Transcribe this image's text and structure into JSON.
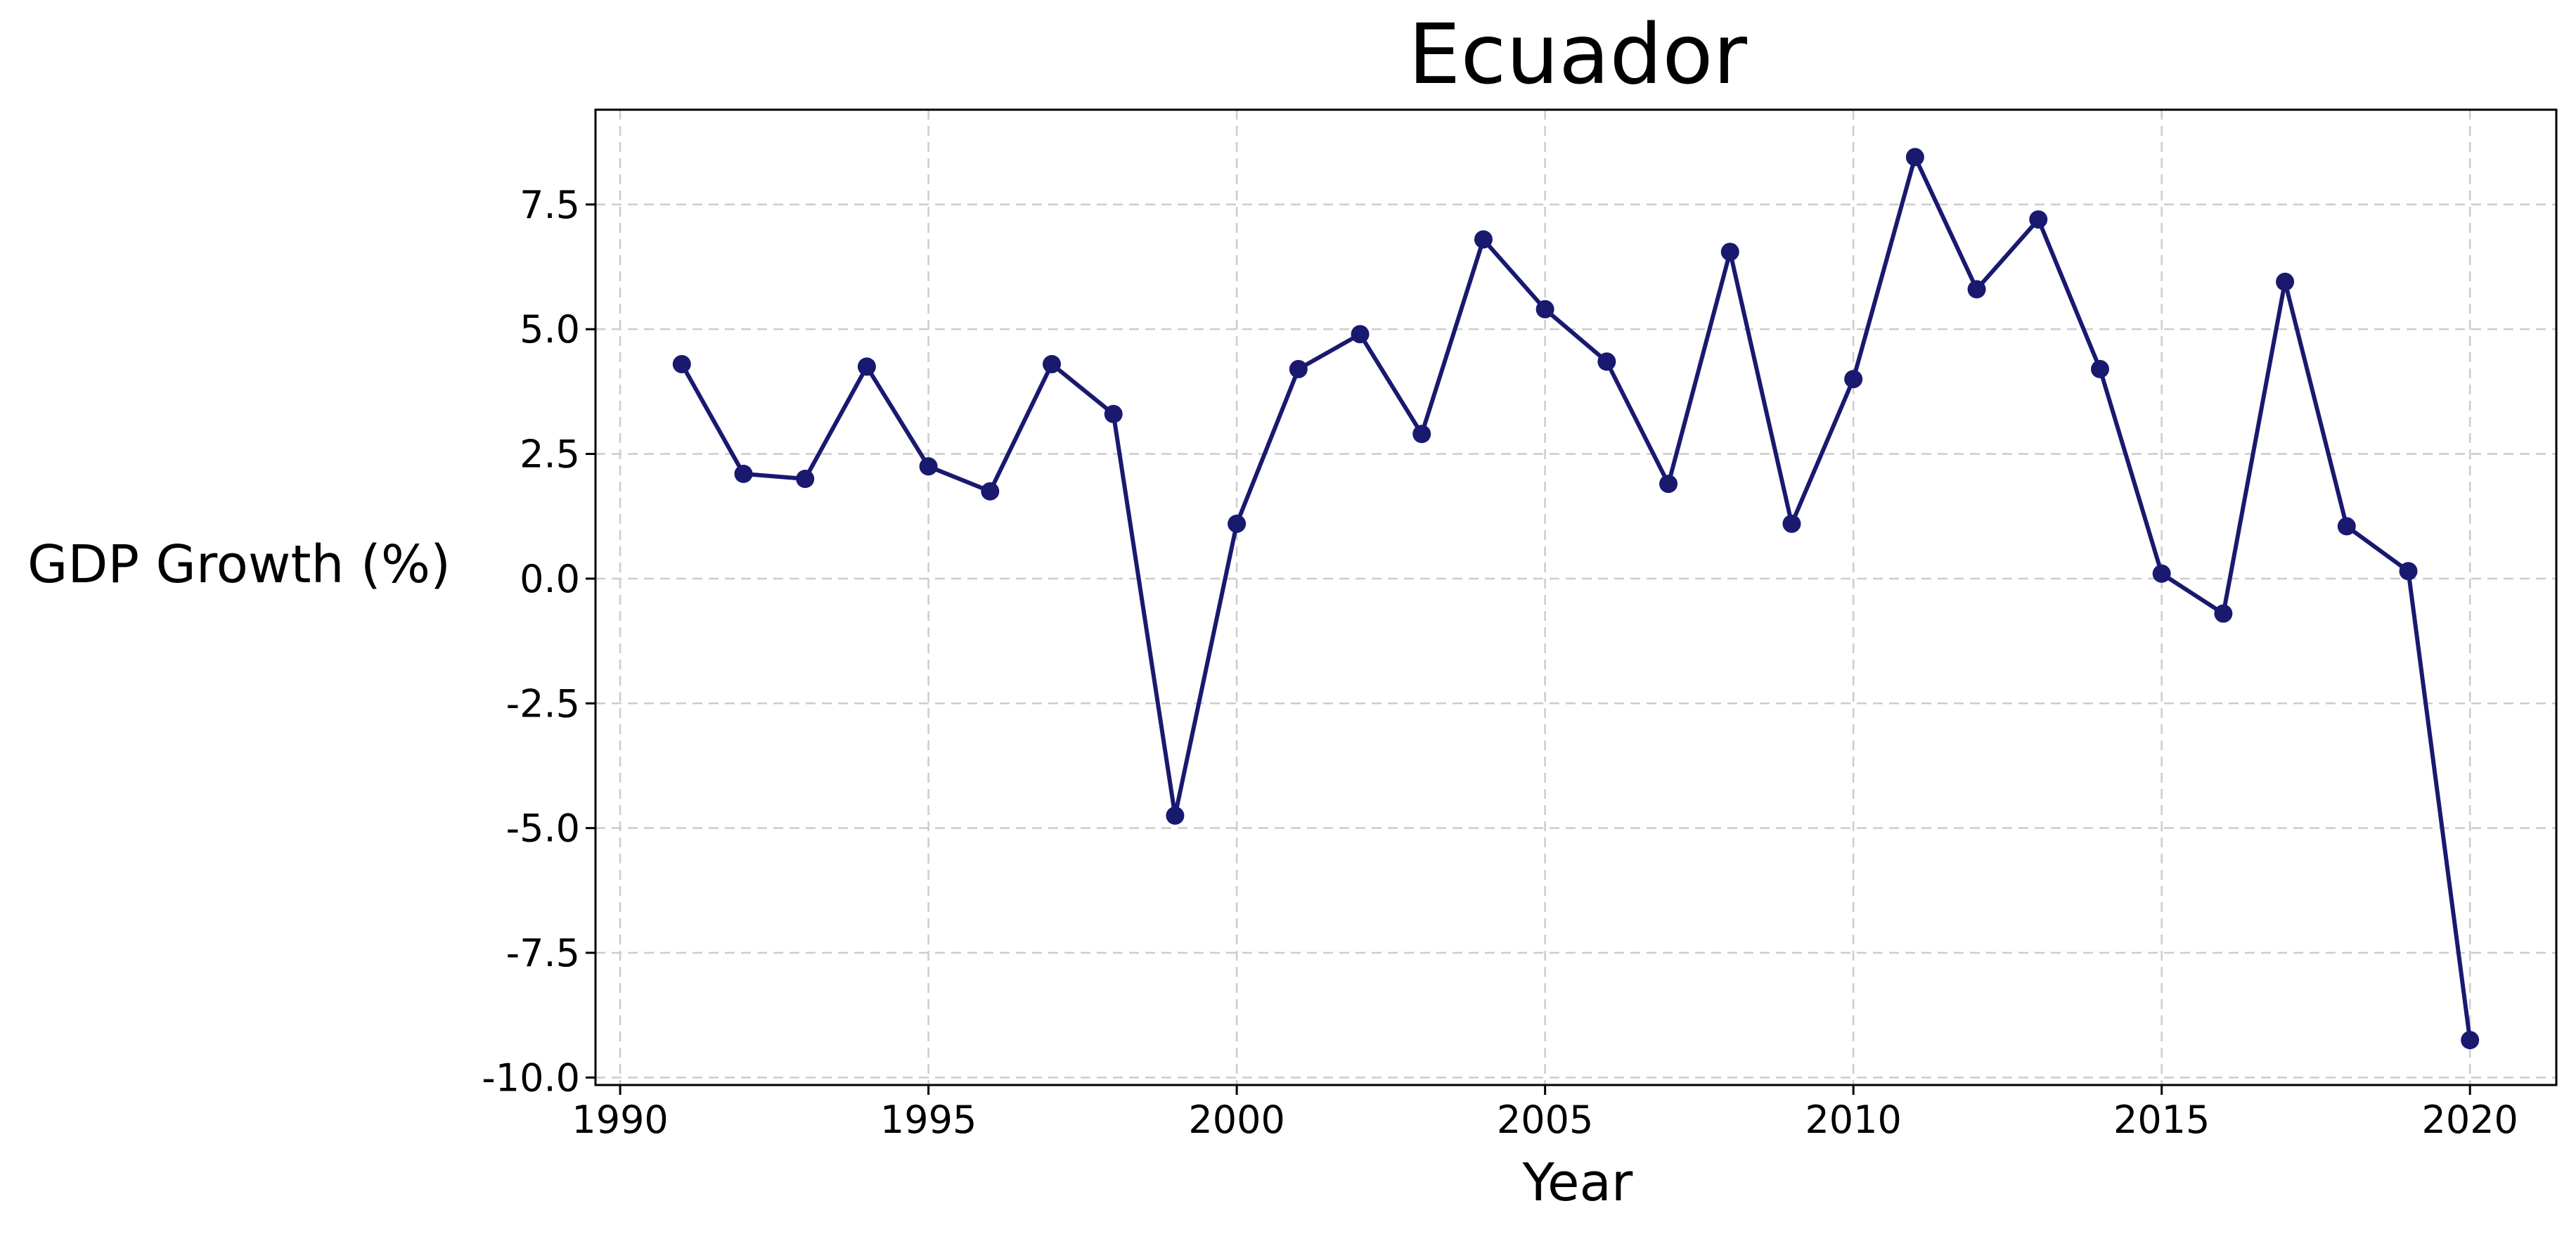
{
  "chart_data": {
    "type": "line",
    "title": "Ecuador",
    "xlabel": "Year",
    "ylabel": "GDP Growth (%)",
    "xlim": [
      1989.6,
      2021.4
    ],
    "ylim": [
      -10.15,
      9.4
    ],
    "x_ticks": [
      1990,
      1995,
      2000,
      2005,
      2010,
      2015,
      2020
    ],
    "x_tick_labels": [
      "1990",
      "1995",
      "2000",
      "2005",
      "2010",
      "2015",
      "2020"
    ],
    "y_ticks": [
      -10.0,
      -7.5,
      -5.0,
      -2.5,
      0.0,
      2.5,
      5.0,
      7.5
    ],
    "y_tick_labels": [
      "-10.0",
      "-7.5",
      "-5.0",
      "-2.5",
      "0.0",
      "2.5",
      "5.0",
      "7.5"
    ],
    "grid": true,
    "series": [
      {
        "color": "#191970",
        "marker": "circle",
        "x": [
          1991,
          1992,
          1993,
          1994,
          1995,
          1996,
          1997,
          1998,
          1999,
          2000,
          2001,
          2002,
          2003,
          2004,
          2005,
          2006,
          2007,
          2008,
          2009,
          2010,
          2011,
          2012,
          2013,
          2014,
          2015,
          2016,
          2017,
          2018,
          2019,
          2020
        ],
        "y": [
          4.3,
          2.1,
          2.0,
          4.25,
          2.25,
          1.75,
          4.3,
          3.3,
          -4.75,
          1.1,
          4.2,
          4.9,
          2.9,
          6.8,
          5.4,
          4.35,
          1.9,
          6.55,
          1.1,
          4.0,
          8.45,
          5.8,
          7.2,
          4.2,
          0.1,
          -0.7,
          5.95,
          1.05,
          0.15,
          -9.25
        ]
      }
    ]
  }
}
